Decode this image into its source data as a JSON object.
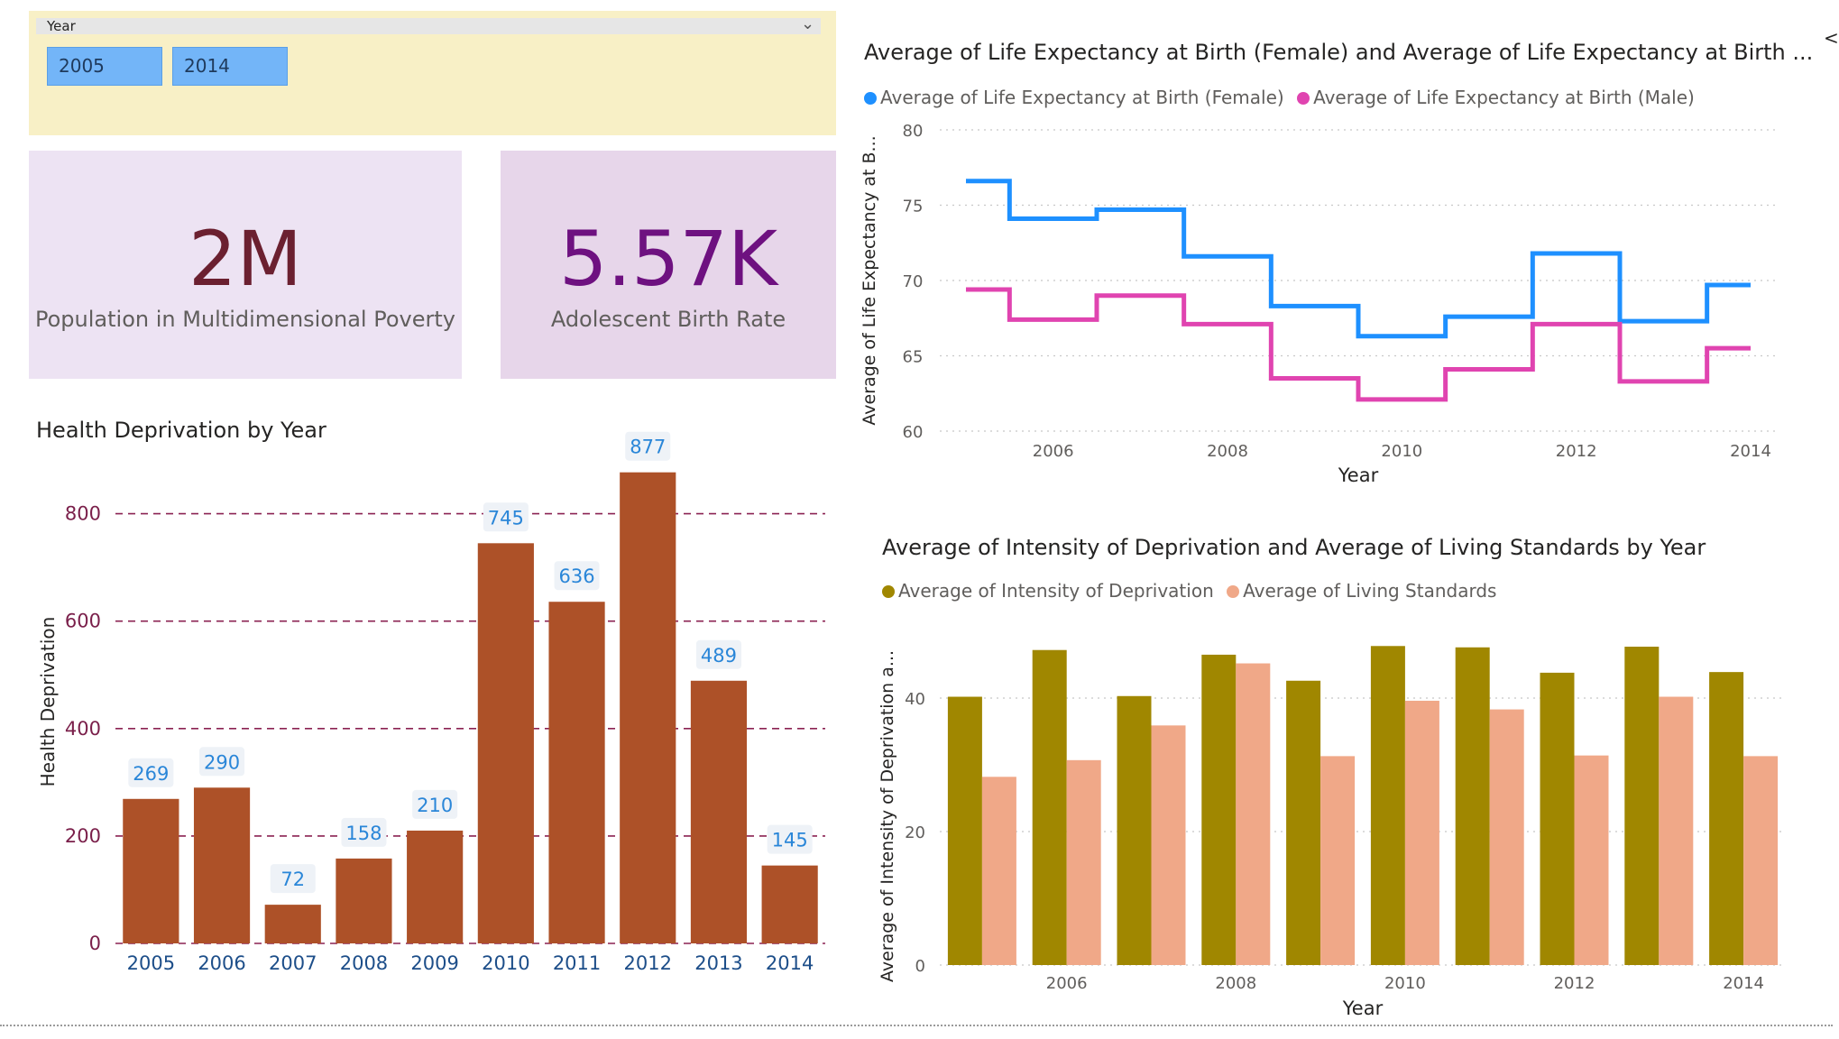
{
  "slicer": {
    "title": "Year",
    "start": "2005",
    "end": "2014"
  },
  "cards": {
    "poverty": {
      "value": "2M",
      "label": "Population in Multidimensional Poverty",
      "color": "#6b2030"
    },
    "birth": {
      "value": "5.57K",
      "label": "Adolescent Birth Rate",
      "color": "#6e1180"
    }
  },
  "filters_tab": {
    "chevron": "<"
  },
  "chart_data": [
    {
      "id": "health",
      "type": "bar",
      "title": "Health Deprivation by Year",
      "xlabel": "",
      "ylabel": "Health Deprivation",
      "categories": [
        "2005",
        "2006",
        "2007",
        "2008",
        "2009",
        "2010",
        "2011",
        "2012",
        "2013",
        "2014"
      ],
      "values": [
        269,
        290,
        72,
        158,
        210,
        745,
        636,
        877,
        489,
        145
      ],
      "data_labels": [
        "269",
        "290",
        "72",
        "158",
        "210",
        "745",
        "636",
        "877",
        "489",
        "145"
      ],
      "ylim": [
        0,
        900
      ],
      "yticks": [
        0,
        200,
        400,
        600,
        800
      ],
      "ytick_labels": [
        "0",
        "200",
        "400",
        "600",
        "800"
      ],
      "grid": true,
      "colors": {
        "bar": "#ad5128",
        "grid": "#8b2252",
        "label": "#2a86d8",
        "label_bg": "#eef2f7",
        "tick": "#1d4e89",
        "ytick": "#7a1f4a"
      }
    },
    {
      "id": "life",
      "type": "line",
      "step": true,
      "title": "Average of Life Expectancy at Birth (Female) and Average of Life Expectancy at Birth ...",
      "xlabel": "Year",
      "ylabel": "Average of Life Expectancy at B...",
      "x": [
        2005,
        2006,
        2007,
        2008,
        2009,
        2010,
        2011,
        2012,
        2013,
        2014
      ],
      "series": [
        {
          "name": "Average of Life Expectancy at Birth (Female)",
          "color": "#1e90ff",
          "values": [
            76.6,
            74.1,
            74.7,
            71.6,
            68.3,
            66.3,
            67.6,
            71.8,
            67.3,
            69.7
          ]
        },
        {
          "name": "Average of Life Expectancy at Birth (Male)",
          "color": "#e044b0",
          "values": [
            69.4,
            67.4,
            69.0,
            67.1,
            63.5,
            62.1,
            64.1,
            67.1,
            63.3,
            65.5
          ]
        }
      ],
      "xlim": [
        2005,
        2014
      ],
      "ylim": [
        60,
        80
      ],
      "yticks": [
        60,
        65,
        70,
        75,
        80
      ],
      "ytick_labels": [
        "60",
        "65",
        "70",
        "75",
        "80"
      ],
      "xticks": [
        2006,
        2008,
        2010,
        2012,
        2014
      ],
      "xtick_labels": [
        "2006",
        "2008",
        "2010",
        "2012",
        "2014"
      ],
      "grid": true,
      "legend": "top-left"
    },
    {
      "id": "intensity",
      "type": "bar",
      "title": "Average of Intensity of Deprivation and Average of Living Standards by Year",
      "xlabel": "Year",
      "ylabel": "Average of Intensity of Deprivation a...",
      "categories": [
        "2005",
        "2006",
        "2007",
        "2008",
        "2009",
        "2010",
        "2011",
        "2012",
        "2013",
        "2014"
      ],
      "series": [
        {
          "name": "Average of Intensity of Deprivation",
          "color": "#a08700",
          "values": [
            40.2,
            47.2,
            40.3,
            46.5,
            42.6,
            47.8,
            47.6,
            43.8,
            47.7,
            43.9
          ]
        },
        {
          "name": "Average of Living Standards",
          "color": "#f0a888",
          "values": [
            28.2,
            30.7,
            35.9,
            45.2,
            31.3,
            39.6,
            38.3,
            31.4,
            40.2,
            31.3
          ]
        }
      ],
      "ylim": [
        0,
        50
      ],
      "yticks": [
        0,
        20,
        40
      ],
      "ytick_labels": [
        "0",
        "20",
        "40"
      ],
      "xtick_labels": [
        "",
        "2006",
        "",
        "2008",
        "",
        "2010",
        "",
        "2012",
        "",
        "2014"
      ],
      "grid": true,
      "legend": "top-left"
    }
  ]
}
